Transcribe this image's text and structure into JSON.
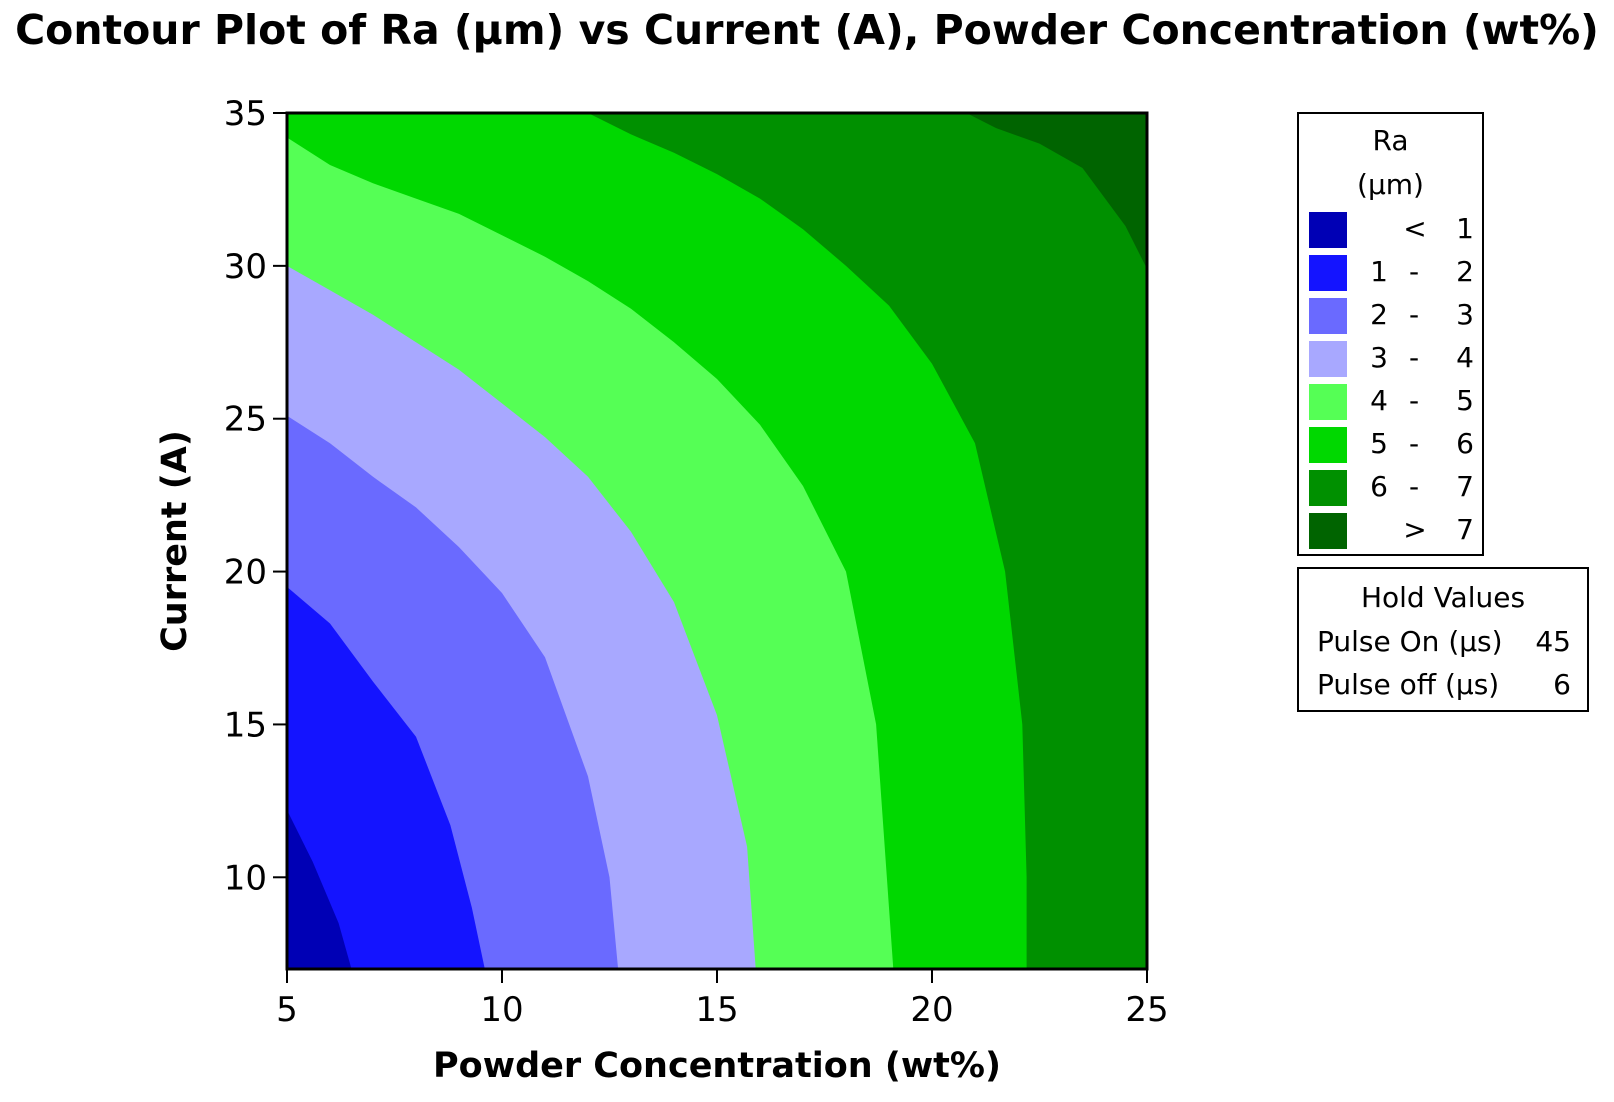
{
  "chart_data": {
    "type": "contour",
    "title": "Contour Plot of Ra (µm) vs Current (A), Powder Concentration (wt%)",
    "xlabel": "Powder Concentration (wt%)",
    "ylabel": "Current (A)",
    "xlim": [
      5,
      25
    ],
    "ylim": [
      7,
      35
    ],
    "xticks": [
      5,
      10,
      15,
      20,
      25
    ],
    "yticks": [
      10,
      15,
      20,
      25,
      30,
      35
    ],
    "z_variable": "Ra (µm)",
    "levels": [
      1,
      2,
      3,
      4,
      5,
      6,
      7
    ],
    "contour_lines": [
      {
        "level": 1,
        "points": [
          [
            5,
            12.2
          ],
          [
            5.6,
            10.5
          ],
          [
            6.2,
            8.5
          ],
          [
            6.5,
            7
          ]
        ]
      },
      {
        "level": 2,
        "points": [
          [
            5,
            19.5
          ],
          [
            6,
            18.3
          ],
          [
            7,
            16.4
          ],
          [
            8,
            14.6
          ],
          [
            8.8,
            11.7
          ],
          [
            9.3,
            9
          ],
          [
            9.6,
            7
          ]
        ]
      },
      {
        "level": 3,
        "points": [
          [
            5,
            25.1
          ],
          [
            6,
            24.2
          ],
          [
            7,
            23.1
          ],
          [
            8,
            22.1
          ],
          [
            9,
            20.8
          ],
          [
            10,
            19.3
          ],
          [
            11,
            17.2
          ],
          [
            12,
            13.3
          ],
          [
            12.5,
            10
          ],
          [
            12.7,
            7
          ]
        ]
      },
      {
        "level": 4,
        "points": [
          [
            5,
            30
          ],
          [
            6,
            29.2
          ],
          [
            7,
            28.4
          ],
          [
            8,
            27.5
          ],
          [
            9,
            26.6
          ],
          [
            10,
            25.5
          ],
          [
            11,
            24.4
          ],
          [
            12,
            23.1
          ],
          [
            13,
            21.3
          ],
          [
            14,
            19
          ],
          [
            15,
            15.3
          ],
          [
            15.7,
            11
          ],
          [
            15.9,
            7
          ]
        ]
      },
      {
        "level": 5,
        "points": [
          [
            5,
            34.2
          ],
          [
            6,
            33.3
          ],
          [
            7,
            32.7
          ],
          [
            8,
            32.2
          ],
          [
            9,
            31.7
          ],
          [
            10,
            31
          ],
          [
            11,
            30.3
          ],
          [
            12,
            29.5
          ],
          [
            13,
            28.6
          ],
          [
            14,
            27.5
          ],
          [
            15,
            26.3
          ],
          [
            16,
            24.8
          ],
          [
            17,
            22.8
          ],
          [
            18,
            20
          ],
          [
            18.7,
            15
          ],
          [
            18.9,
            11
          ],
          [
            19.1,
            7
          ]
        ]
      },
      {
        "level": 6,
        "points": [
          [
            12,
            35
          ],
          [
            13,
            34.3
          ],
          [
            14,
            33.7
          ],
          [
            15,
            33
          ],
          [
            16,
            32.2
          ],
          [
            17,
            31.2
          ],
          [
            18,
            30
          ],
          [
            19,
            28.7
          ],
          [
            20,
            26.8
          ],
          [
            21,
            24.2
          ],
          [
            21.7,
            20
          ],
          [
            22.1,
            15
          ],
          [
            22.2,
            10
          ],
          [
            22.2,
            7
          ]
        ]
      },
      {
        "level": 7,
        "points": [
          [
            20.8,
            35
          ],
          [
            21.5,
            34.5
          ],
          [
            22.5,
            34
          ],
          [
            23.5,
            33.2
          ],
          [
            24.5,
            31.3
          ],
          [
            25,
            29.9
          ]
        ]
      }
    ],
    "legend": {
      "title": [
        "Ra",
        "(µm)"
      ],
      "entries": [
        {
          "lo": "<",
          "hi": "1",
          "color": "#0000B5"
        },
        {
          "lo": "1",
          "hi": "2",
          "color": "#1414FF"
        },
        {
          "lo": "2",
          "hi": "3",
          "color": "#6A6AFF"
        },
        {
          "lo": "3",
          "hi": "4",
          "color": "#A8A8FF"
        },
        {
          "lo": "4",
          "hi": "5",
          "color": "#55FF55"
        },
        {
          "lo": "5",
          "hi": "6",
          "color": "#00D800"
        },
        {
          "lo": "6",
          "hi": "7",
          "color": "#009000"
        },
        {
          "lo": ">",
          "hi": "7",
          "color": "#006400"
        }
      ],
      "placement": "right"
    },
    "hold_values": {
      "title": "Hold Values",
      "rows": [
        {
          "label": "Pulse On (µs)",
          "value": "45"
        },
        {
          "label": "Pulse off (µs)",
          "value": "6"
        }
      ]
    }
  }
}
